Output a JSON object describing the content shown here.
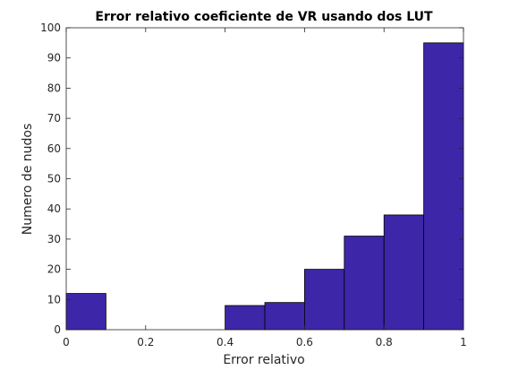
{
  "chart_data": {
    "type": "bar",
    "title": "Error relativo coeficiente de VR usando dos LUT",
    "xlabel": "Error relativo",
    "ylabel": "Numero de nudos",
    "xlim": [
      0,
      1
    ],
    "ylim": [
      0,
      100
    ],
    "xticks": [
      0,
      0.2,
      0.4,
      0.6,
      0.8,
      1
    ],
    "xtick_labels": [
      "0",
      "0.2",
      "0.4",
      "0.6",
      "0.8",
      "1"
    ],
    "yticks": [
      0,
      10,
      20,
      30,
      40,
      50,
      60,
      70,
      80,
      90,
      100
    ],
    "ytick_labels": [
      "0",
      "10",
      "20",
      "30",
      "40",
      "50",
      "60",
      "70",
      "80",
      "90",
      "100"
    ],
    "bin_edges": [
      0,
      0.1,
      0.2,
      0.3,
      0.4,
      0.5,
      0.6,
      0.7,
      0.8,
      0.9,
      1.0
    ],
    "counts": [
      12,
      0,
      0,
      0,
      8,
      9,
      20,
      31,
      38,
      95
    ],
    "bar_color": "#3e26a8",
    "bar_edge_color": "#000000",
    "grid": false
  }
}
